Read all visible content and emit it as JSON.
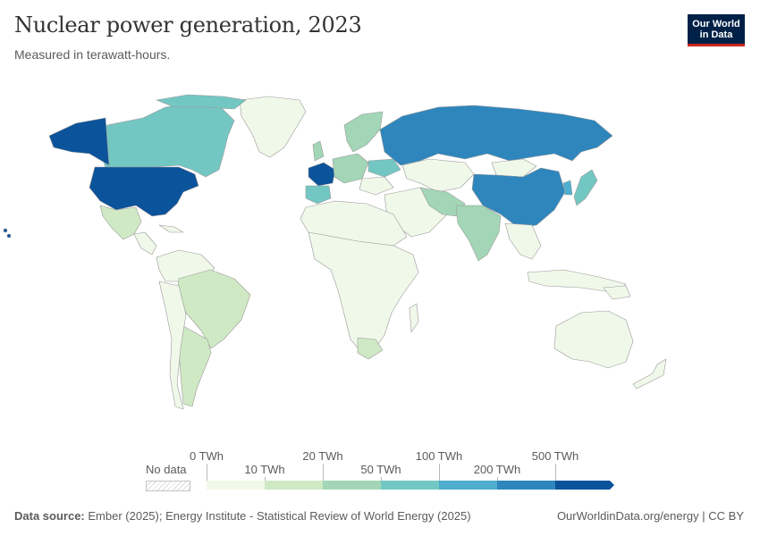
{
  "header": {
    "title": "Nuclear power generation, 2023",
    "subtitle": "Measured in terawatt-hours.",
    "logo_line1": "Our World",
    "logo_line2": "in Data"
  },
  "legend": {
    "no_data_label": "No data",
    "upper_labels": [
      "0 TWh",
      "20 TWh",
      "100 TWh",
      "500 TWh"
    ],
    "lower_labels": [
      "10 TWh",
      "50 TWh",
      "200 TWh"
    ],
    "bin_colors": [
      "#f0f8ea",
      "#cfe9c5",
      "#a2d6b6",
      "#73c7c3",
      "#4eaecf",
      "#2e86bd",
      "#0b539a"
    ]
  },
  "map_data": {
    "type": "choropleth",
    "year": 2023,
    "unit": "TWh",
    "colors": {
      "ocean": "#ffffff",
      "border": "#9a9a9a",
      "no_data": "#eeeeee"
    }
  },
  "footer": {
    "source_label": "Data source:",
    "source_text": "Ember (2025); Energy Institute - Statistical Review of World Energy (2025)",
    "url": "OurWorldinData.org/energy | CC BY"
  }
}
